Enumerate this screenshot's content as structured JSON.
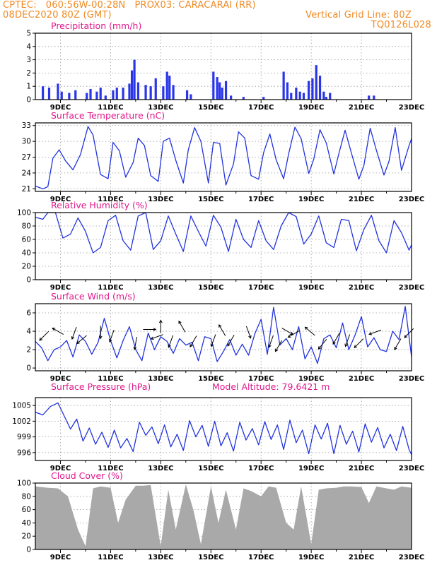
{
  "header": {
    "line1_left": "CPTEC:   060:56W-00:28N   PROX03: CARACARAI (RR)",
    "line2_left": "08DEC2020 80Z (GMT)",
    "line2_right": "Vertical Grid Line: 80Z",
    "line3_right": "TQ0126L028"
  },
  "colors": {
    "header": "#f08a24",
    "panel_title": "#e0188c",
    "series": "#2233dd",
    "bars": "#2a35e8",
    "cloud": "#a9a9a9"
  },
  "x_axis": {
    "min_day": 8,
    "max_day": 23,
    "tick_labels": [
      "9DEC",
      "11DEC",
      "13DEC",
      "15DEC",
      "17DEC",
      "19DEC",
      "21DEC",
      "23DEC"
    ],
    "tick_days": [
      9,
      11,
      13,
      15,
      17,
      19,
      21,
      23
    ]
  },
  "chart_data": [
    {
      "type": "bar",
      "title": "Precipitation (mm/h)",
      "ylim": [
        0,
        5
      ],
      "yticks": [
        0,
        1,
        2,
        3,
        4,
        5
      ],
      "x": [
        8.3,
        8.55,
        8.9,
        9.05,
        9.35,
        9.6,
        10.05,
        10.2,
        10.45,
        10.6,
        10.8,
        11.1,
        11.25,
        11.5,
        11.75,
        11.85,
        11.95,
        12.1,
        12.4,
        12.6,
        12.8,
        13.1,
        13.25,
        13.35,
        13.5,
        14.05,
        14.2,
        15.1,
        15.25,
        15.35,
        15.45,
        15.6,
        15.8,
        16.3,
        17.1,
        17.9,
        18.05,
        18.2,
        18.4,
        18.55,
        18.7,
        18.9,
        19.05,
        19.2,
        19.35,
        19.5,
        19.6,
        19.75,
        21.3,
        21.5
      ],
      "values": [
        1.0,
        0.9,
        1.2,
        0.6,
        0.5,
        0.7,
        0.5,
        0.8,
        0.6,
        0.9,
        0.3,
        0.7,
        0.9,
        0.9,
        1.2,
        2.2,
        3.0,
        1.3,
        1.1,
        1.0,
        1.6,
        1.0,
        2.1,
        1.8,
        1.1,
        0.7,
        0.4,
        2.1,
        1.7,
        1.3,
        0.9,
        1.4,
        0.3,
        0.2,
        0.2,
        2.1,
        1.3,
        0.5,
        0.9,
        0.6,
        0.5,
        1.4,
        1.6,
        2.6,
        1.8,
        0.6,
        0.2,
        0.5,
        0.3,
        0.3
      ]
    },
    {
      "type": "line",
      "title": "Surface Temperature (nC)",
      "ylim": [
        20.5,
        33.5
      ],
      "yticks": [
        21,
        24,
        27,
        30,
        33
      ],
      "x": [
        8,
        8.3,
        8.5,
        8.7,
        8.95,
        9.2,
        9.5,
        9.8,
        10.1,
        10.3,
        10.6,
        10.9,
        11.1,
        11.35,
        11.6,
        11.9,
        12.1,
        12.35,
        12.6,
        12.9,
        13.1,
        13.35,
        13.6,
        13.9,
        14.1,
        14.35,
        14.6,
        14.9,
        15.1,
        15.35,
        15.6,
        15.9,
        16.1,
        16.35,
        16.6,
        16.9,
        17.1,
        17.35,
        17.6,
        17.9,
        18.1,
        18.35,
        18.6,
        18.9,
        19.1,
        19.35,
        19.6,
        19.9,
        20.1,
        20.35,
        20.6,
        20.9,
        21.1,
        21.35,
        21.6,
        21.9,
        22.1,
        22.35,
        22.6,
        22.9,
        23
      ],
      "values": [
        21.5,
        21.0,
        21.4,
        26.8,
        28.4,
        26.3,
        24.6,
        27.5,
        32.8,
        31.2,
        23.7,
        22.9,
        29.8,
        28.2,
        23.2,
        26.0,
        30.6,
        29.2,
        23.5,
        22.4,
        30.0,
        30.6,
        26.4,
        22.1,
        28.4,
        32.6,
        30.0,
        22.1,
        29.8,
        29.6,
        21.7,
        25.7,
        31.8,
        30.6,
        23.5,
        22.8,
        27.8,
        31.4,
        26.5,
        22.9,
        27.6,
        32.7,
        30.5,
        23.9,
        26.6,
        32.2,
        29.7,
        23.8,
        27.6,
        32.1,
        27.8,
        22.8,
        25.4,
        32.5,
        28.3,
        23.6,
        26.2,
        32.6,
        24.5,
        29.2,
        30.5
      ]
    },
    {
      "type": "line",
      "title": "Relative Humidity (%)",
      "ylim": [
        0,
        100
      ],
      "yticks": [
        0,
        20,
        40,
        60,
        80,
        100
      ],
      "x": [
        8,
        8.3,
        8.5,
        8.8,
        9.1,
        9.4,
        9.7,
        10.0,
        10.3,
        10.6,
        10.9,
        11.2,
        11.5,
        11.8,
        12.1,
        12.4,
        12.7,
        13.0,
        13.3,
        13.6,
        13.9,
        14.2,
        14.5,
        14.8,
        15.1,
        15.4,
        15.7,
        16.0,
        16.3,
        16.6,
        16.9,
        17.2,
        17.5,
        17.8,
        18.1,
        18.4,
        18.7,
        19.0,
        19.3,
        19.6,
        19.9,
        20.2,
        20.5,
        20.8,
        21.1,
        21.4,
        21.7,
        22.0,
        22.3,
        22.6,
        22.9,
        23
      ],
      "values": [
        93,
        90,
        100,
        100,
        62,
        68,
        92,
        72,
        40,
        48,
        88,
        96,
        58,
        44,
        95,
        100,
        45,
        58,
        95,
        68,
        42,
        95,
        72,
        50,
        96,
        78,
        42,
        90,
        60,
        48,
        88,
        58,
        45,
        80,
        100,
        94,
        53,
        68,
        95,
        55,
        48,
        90,
        88,
        43,
        75,
        96,
        58,
        40,
        88,
        70,
        44,
        52
      ]
    },
    {
      "type": "line",
      "title": "Surface Wind (m/s)",
      "ylim": [
        -0.3,
        7
      ],
      "yticks": [
        0,
        2,
        4,
        6
      ],
      "x": [
        8,
        8.25,
        8.5,
        8.75,
        9.0,
        9.25,
        9.5,
        9.75,
        10.0,
        10.25,
        10.5,
        10.75,
        11.0,
        11.25,
        11.5,
        11.75,
        12.0,
        12.25,
        12.5,
        12.75,
        13.0,
        13.25,
        13.5,
        13.75,
        14.0,
        14.25,
        14.5,
        14.75,
        15.0,
        15.25,
        15.5,
        15.75,
        16.0,
        16.25,
        16.5,
        16.75,
        17.0,
        17.25,
        17.5,
        17.75,
        18.0,
        18.25,
        18.5,
        18.75,
        19.0,
        19.25,
        19.5,
        19.75,
        20.0,
        20.25,
        20.5,
        20.75,
        21.0,
        21.25,
        21.5,
        21.75,
        22.0,
        22.25,
        22.5,
        22.75,
        23
      ],
      "values": [
        2.9,
        2.2,
        0.8,
        2.0,
        2.3,
        3.0,
        1.2,
        3.6,
        2.9,
        1.5,
        2.8,
        5.4,
        3.0,
        1.1,
        3.0,
        4.5,
        2.0,
        0.8,
        3.8,
        2.0,
        3.4,
        2.9,
        1.6,
        3.2,
        2.5,
        2.8,
        0.8,
        3.4,
        3.2,
        0.7,
        1.8,
        3.1,
        1.4,
        2.6,
        1.4,
        3.7,
        5.3,
        1.5,
        6.6,
        2.5,
        3.2,
        2.0,
        4.5,
        1.0,
        2.3,
        0.5,
        3.2,
        3.6,
        2.2,
        4.9,
        2.0,
        3.6,
        5.6,
        2.3,
        3.3,
        2.0,
        1.8,
        4.0,
        3.1,
        6.7,
        1.2
      ]
    },
    {
      "type": "line",
      "title": "Surface Pressure (hPa)",
      "annotation": "Model Altitude: 79.6421 m",
      "ylim": [
        994.5,
        1006.5
      ],
      "yticks": [
        996,
        999,
        1002,
        1005
      ],
      "x": [
        8,
        8.3,
        8.6,
        8.9,
        9.15,
        9.4,
        9.65,
        9.9,
        10.15,
        10.4,
        10.65,
        10.9,
        11.15,
        11.4,
        11.65,
        11.9,
        12.15,
        12.4,
        12.65,
        12.9,
        13.15,
        13.4,
        13.65,
        13.9,
        14.15,
        14.4,
        14.65,
        14.9,
        15.15,
        15.4,
        15.65,
        15.9,
        16.15,
        16.4,
        16.65,
        16.9,
        17.15,
        17.4,
        17.65,
        17.9,
        18.15,
        18.4,
        18.65,
        18.9,
        19.15,
        19.4,
        19.65,
        19.9,
        20.15,
        20.4,
        20.65,
        20.9,
        21.15,
        21.4,
        21.65,
        21.9,
        22.15,
        22.4,
        22.65,
        22.9,
        23
      ],
      "values": [
        1003.7,
        1003.2,
        1004.8,
        1005.5,
        1003.0,
        1000.5,
        1002.4,
        998.2,
        1000.7,
        997.6,
        999.9,
        997.0,
        1000.3,
        996.9,
        998.7,
        996.2,
        1001.8,
        999.3,
        1000.9,
        997.7,
        1001.3,
        997.1,
        999.5,
        996.4,
        1002.1,
        999.0,
        1001.2,
        997.2,
        1002.0,
        997.3,
        999.8,
        996.3,
        1001.8,
        998.4,
        1000.6,
        997.5,
        1001.9,
        998.5,
        1001.3,
        996.6,
        1002.2,
        997.9,
        1000.3,
        995.8,
        1001.3,
        998.6,
        1001.6,
        995.8,
        1001.2,
        997.6,
        1000.1,
        996.1,
        1001.5,
        998.0,
        1000.8,
        996.9,
        999.5,
        996.4,
        1001.0,
        996.6,
        995.6
      ]
    },
    {
      "type": "area",
      "title": "Cloud Cover (%)",
      "ylim": [
        0,
        100
      ],
      "yticks": [
        0,
        20,
        40,
        60,
        80,
        100
      ],
      "x": [
        8,
        8.5,
        8.9,
        9.3,
        9.7,
        10.0,
        10.3,
        10.6,
        11.0,
        11.3,
        11.6,
        12.0,
        12.3,
        12.6,
        13.0,
        13.3,
        13.6,
        14.0,
        14.3,
        14.6,
        15.0,
        15.3,
        15.6,
        16.0,
        16.3,
        16.6,
        17.0,
        17.3,
        17.6,
        18.0,
        18.3,
        18.6,
        19.0,
        19.3,
        19.6,
        20.0,
        20.3,
        20.6,
        21.0,
        21.3,
        21.6,
        22.0,
        22.3,
        22.6,
        23
      ],
      "values": [
        95,
        93,
        92,
        80,
        30,
        5,
        92,
        95,
        93,
        40,
        75,
        96,
        96,
        97,
        5,
        90,
        30,
        98,
        60,
        8,
        95,
        40,
        90,
        30,
        92,
        88,
        80,
        95,
        93,
        40,
        30,
        95,
        8,
        90,
        92,
        93,
        95,
        95,
        94,
        70,
        95,
        92,
        90,
        95,
        93
      ]
    }
  ],
  "wind_arrows": [
    {
      "x": 8.35,
      "y": 3.5,
      "dir": 225
    },
    {
      "x": 8.9,
      "y": 4.0,
      "dir": 300
    },
    {
      "x": 9.55,
      "y": 3.8,
      "dir": 200
    },
    {
      "x": 9.85,
      "y": 3.1,
      "dir": 230
    },
    {
      "x": 10.6,
      "y": 3.9,
      "dir": 180
    },
    {
      "x": 11.05,
      "y": 3.5,
      "dir": 200
    },
    {
      "x": 12.0,
      "y": 2.7,
      "dir": 190
    },
    {
      "x": 12.55,
      "y": 4.2,
      "dir": 90
    },
    {
      "x": 12.85,
      "y": 3.4,
      "dir": 250
    },
    {
      "x": 13.0,
      "y": 4.5,
      "dir": 0
    },
    {
      "x": 13.4,
      "y": 2.9,
      "dir": 200
    },
    {
      "x": 13.85,
      "y": 4.5,
      "dir": 330
    },
    {
      "x": 14.3,
      "y": 2.9,
      "dir": 210
    },
    {
      "x": 15.1,
      "y": 3.0,
      "dir": 200
    },
    {
      "x": 15.45,
      "y": 4.1,
      "dir": 330
    },
    {
      "x": 15.8,
      "y": 3.0,
      "dir": 210
    },
    {
      "x": 16.5,
      "y": 3.9,
      "dir": 160
    },
    {
      "x": 17.4,
      "y": 2.9,
      "dir": 200
    },
    {
      "x": 17.7,
      "y": 2.4,
      "dir": 210
    },
    {
      "x": 18.05,
      "y": 4.0,
      "dir": 120
    },
    {
      "x": 18.3,
      "y": 3.7,
      "dir": 240
    },
    {
      "x": 18.95,
      "y": 4.0,
      "dir": 310
    },
    {
      "x": 19.45,
      "y": 2.6,
      "dir": 220
    },
    {
      "x": 20.0,
      "y": 3.2,
      "dir": 210
    },
    {
      "x": 20.45,
      "y": 3.0,
      "dir": 200
    },
    {
      "x": 20.9,
      "y": 2.7,
      "dir": 225
    },
    {
      "x": 21.55,
      "y": 3.9,
      "dir": 250
    },
    {
      "x": 22.45,
      "y": 2.6,
      "dir": 210
    },
    {
      "x": 22.9,
      "y": 3.8,
      "dir": 225
    }
  ]
}
